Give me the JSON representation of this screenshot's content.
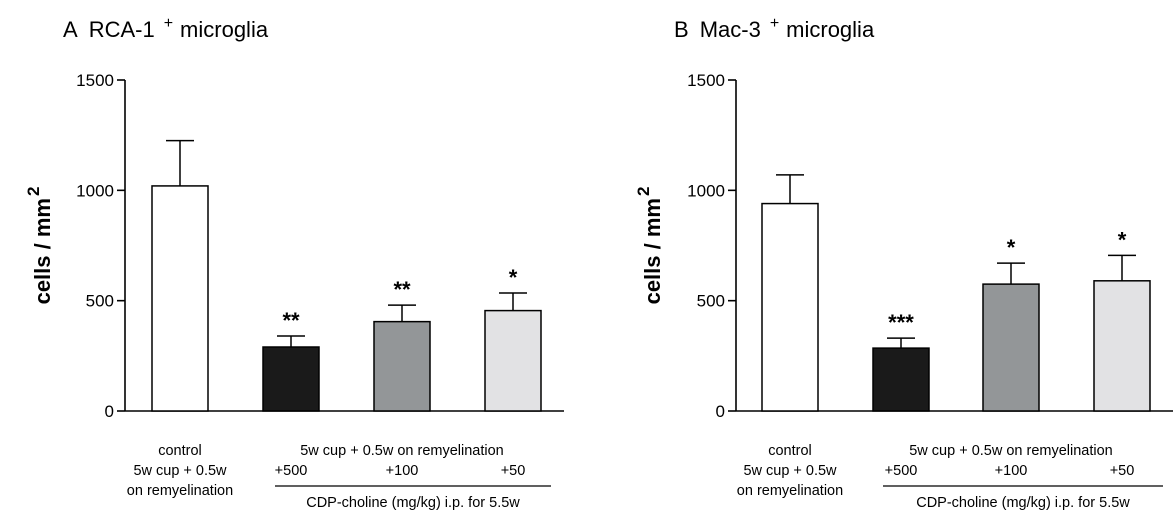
{
  "chart_data": [
    {
      "type": "bar",
      "panel_letter": "A",
      "title_main": "RCA-1",
      "title_sup": "+",
      "title_suffix": "microglia",
      "ylabel_main": "cells / mm",
      "ylabel_sup": "2",
      "ylim": [
        0,
        1500
      ],
      "yticks": [
        "0",
        "500",
        "1000",
        "1500"
      ],
      "categories": [
        "control",
        "+500",
        "+100",
        "+50"
      ],
      "values": [
        1020,
        290,
        405,
        455
      ],
      "errors": [
        205,
        50,
        75,
        80
      ],
      "significance": [
        "",
        "**",
        "**",
        "*"
      ],
      "colors": [
        "#ffffff",
        "#1a1a1a",
        "#939698",
        "#e2e2e4"
      ],
      "control_label_lines": [
        "control",
        "5w cup + 0.5w",
        "on remyelination"
      ],
      "group_label": "5w cup + 0.5w on remyelination",
      "treatment_label": "CDP-choline (mg/kg) i.p. for 5.5w"
    },
    {
      "type": "bar",
      "panel_letter": "B",
      "title_main": "Mac-3",
      "title_sup": "+",
      "title_suffix": "microglia",
      "ylabel_main": "cells / mm",
      "ylabel_sup": "2",
      "ylim": [
        0,
        1500
      ],
      "yticks": [
        "0",
        "500",
        "1000",
        "1500"
      ],
      "categories": [
        "control",
        "+500",
        "+100",
        "+50"
      ],
      "values": [
        940,
        285,
        575,
        590
      ],
      "errors": [
        130,
        45,
        95,
        115
      ],
      "significance": [
        "",
        "***",
        "*",
        "*"
      ],
      "colors": [
        "#ffffff",
        "#1a1a1a",
        "#939698",
        "#e2e2e4"
      ],
      "control_label_lines": [
        "control",
        "5w cup + 0.5w",
        "on remyelination"
      ],
      "group_label": "5w cup + 0.5w on remyelination",
      "treatment_label": "CDP-choline (mg/kg) i.p. for 5.5w"
    }
  ]
}
